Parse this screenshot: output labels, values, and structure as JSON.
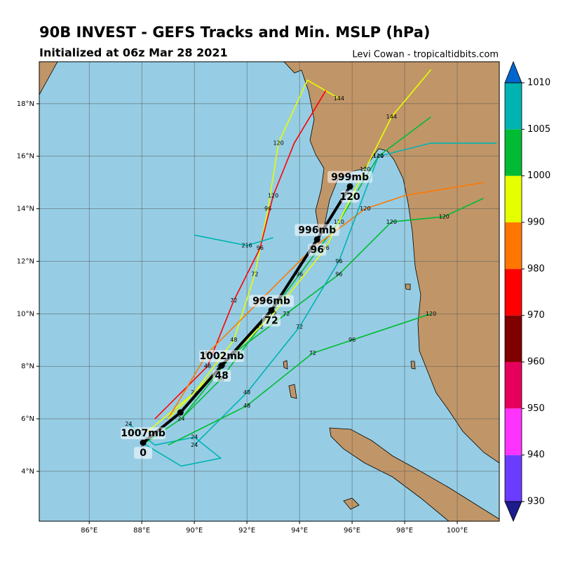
{
  "header": {
    "title": "90B INVEST - GEFS Tracks and Min. MSLP (hPa)",
    "subtitle": "Initialized at 06z Mar 28 2021",
    "credit": "Levi Cowan - tropicaltidbits.com"
  },
  "map": {
    "lonlim": [
      84.1,
      101.6
    ],
    "latlim": [
      2.1,
      19.6
    ],
    "lonticks": [
      {
        "value": 86,
        "label": "86°E"
      },
      {
        "value": 88,
        "label": "88°E"
      },
      {
        "value": 90,
        "label": "90°E"
      },
      {
        "value": 92,
        "label": "92°E"
      },
      {
        "value": 94,
        "label": "94°E"
      },
      {
        "value": 96,
        "label": "96°E"
      },
      {
        "value": 98,
        "label": "98°E"
      },
      {
        "value": 100,
        "label": "100°E"
      }
    ],
    "latticks": [
      {
        "value": 4,
        "label": "4°N"
      },
      {
        "value": 6,
        "label": "6°N"
      },
      {
        "value": 8,
        "label": "8°N"
      },
      {
        "value": 10,
        "label": "10°N"
      },
      {
        "value": 12,
        "label": "12°N"
      },
      {
        "value": 14,
        "label": "14°N"
      },
      {
        "value": 16,
        "label": "16°N"
      },
      {
        "value": 18,
        "label": "18°N"
      }
    ],
    "grid": true,
    "ensemble_tracks": [
      {
        "color": "#00b3b3",
        "lon": [
          87.5,
          88.5,
          90,
          91,
          89.5,
          88
        ],
        "lat": [
          5.8,
          5.0,
          5.3,
          4.5,
          4.2,
          5.1
        ],
        "labels": [
          "24",
          null,
          "24",
          null,
          null,
          null
        ]
      },
      {
        "color": "#00bb33",
        "lon": [
          88,
          89.5,
          91,
          92.5,
          94,
          95.5,
          97,
          99
        ],
        "lat": [
          5,
          6,
          7.5,
          9.5,
          11.5,
          13.5,
          16,
          17.5
        ],
        "labels": [
          null,
          "24",
          "48",
          "72",
          "96",
          "120",
          "144",
          null
        ]
      },
      {
        "color": "#e6ff00",
        "lon": [
          88.2,
          90,
          91.5,
          92.3,
          92.8,
          93.2,
          94.3,
          95.5
        ],
        "lat": [
          5.5,
          7,
          9,
          11.5,
          14,
          16.5,
          18.9,
          18.2
        ],
        "labels": [
          null,
          "24",
          "48",
          "72",
          "96",
          "120",
          null,
          "144"
        ]
      },
      {
        "color": "#ff0000",
        "lon": [
          88.5,
          90.5,
          91.5,
          92.5,
          93,
          93.8,
          95
        ],
        "lat": [
          6,
          8,
          10.5,
          12.5,
          14.5,
          16.5,
          18.5
        ],
        "labels": [
          null,
          "48",
          "72",
          "96",
          "120",
          null,
          null
        ]
      },
      {
        "color": "#ff7700",
        "lon": [
          89,
          90.5,
          92.5,
          94.5,
          96.5,
          98,
          101
        ],
        "lat": [
          6,
          8.5,
          10.5,
          12.5,
          14,
          14.5,
          15
        ],
        "labels": [
          null,
          "48",
          "72",
          "96",
          "120",
          null,
          null
        ]
      },
      {
        "color": "#e6ff00",
        "lon": [
          89,
          91,
          93,
          95,
          96.5,
          97.5,
          99
        ],
        "lat": [
          6,
          8,
          10,
          12.5,
          15.5,
          17.5,
          19.3
        ],
        "labels": [
          null,
          "48",
          "72",
          "96",
          "120",
          "144",
          null
        ]
      },
      {
        "color": "#00bb33",
        "lon": [
          89.5,
          91.5,
          93.5,
          95.5,
          97.5,
          99.5,
          101
        ],
        "lat": [
          6,
          8.5,
          10,
          11.5,
          13.5,
          13.7,
          14.4
        ],
        "labels": [
          null,
          "48",
          "72",
          "96",
          "120",
          "120",
          null
        ]
      },
      {
        "color": "#00b3b3",
        "lon": [
          90,
          92,
          94,
          95.5,
          97,
          99,
          101.5
        ],
        "lat": [
          5,
          7,
          9.5,
          12,
          16,
          16.5,
          16.5
        ],
        "labels": [
          "24",
          "48",
          "72",
          "96",
          "120",
          null,
          null
        ]
      },
      {
        "color": "#00bb33",
        "lon": [
          89,
          92,
          94.5,
          96,
          99
        ],
        "lat": [
          5,
          6.5,
          8.5,
          9,
          10
        ],
        "labels": [
          null,
          "48",
          "72",
          "96",
          "120"
        ]
      },
      {
        "color": "#00b3b3",
        "lon": [
          90,
          92,
          93
        ],
        "lat": [
          13,
          12.6,
          12.9
        ],
        "labels": [
          null,
          "216",
          null
        ]
      }
    ],
    "mean_track": {
      "lon": [
        88.05,
        89.47,
        91.04,
        92.93,
        94.67,
        95.92
      ],
      "lat": [
        5.09,
        6.24,
        8.03,
        10.13,
        12.83,
        14.85
      ],
      "pressure_labels": [
        "1007mb",
        null,
        "1002mb",
        "996mb",
        "996mb",
        "999mb"
      ],
      "hour_labels": [
        "0",
        null,
        "48",
        "72",
        "96",
        "120"
      ]
    }
  },
  "colorbar": {
    "bounds": [
      930,
      940,
      950,
      960,
      970,
      980,
      990,
      1000,
      1005,
      1010
    ],
    "colors": [
      "#6a3cff",
      "#ff33ff",
      "#e6005c",
      "#800000",
      "#ff0000",
      "#ff7700",
      "#e6ff00",
      "#00bb33",
      "#00b3b3"
    ],
    "under_color": "#1c1c8c",
    "over_color": "#0066cc"
  }
}
